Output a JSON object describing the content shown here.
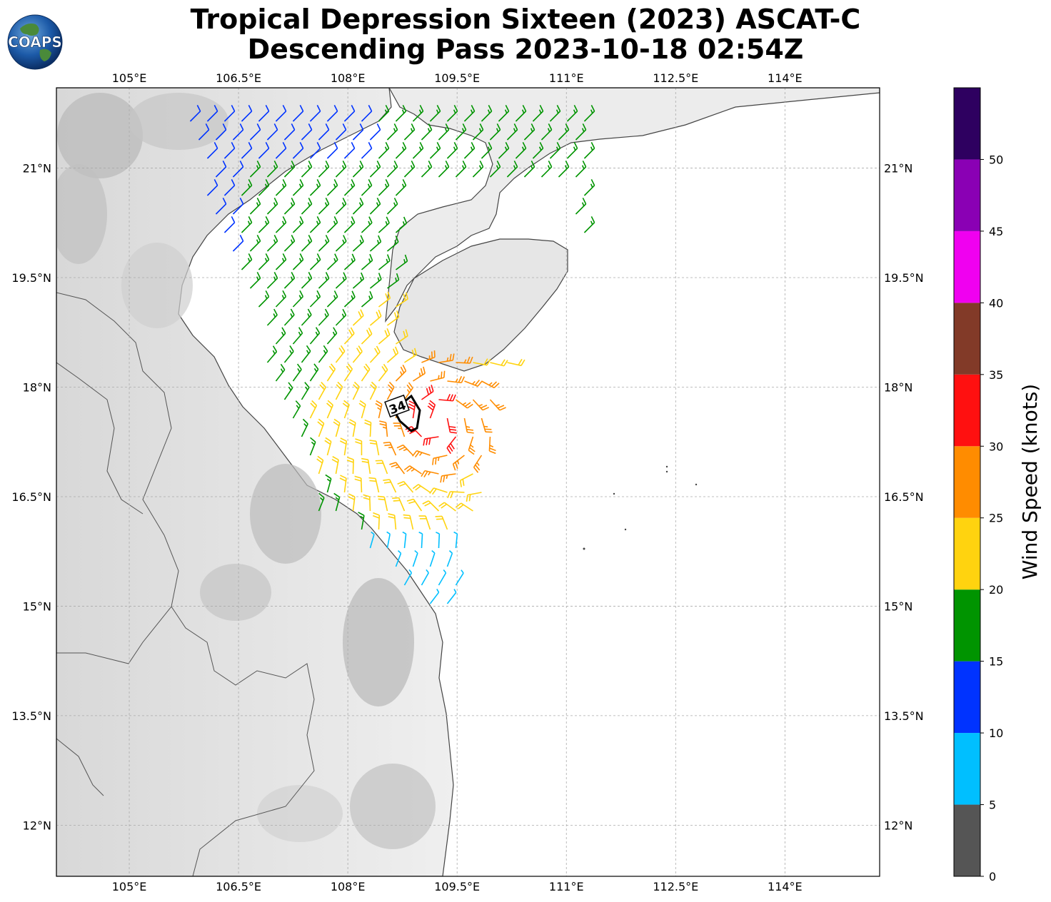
{
  "title_line1": "Tropical Depression Sixteen (2023) ASCAT-C",
  "title_line2": "Descending Pass 2023-10-18 02:54Z",
  "logo_text": "COAPS",
  "map": {
    "lon_range": [
      104.0,
      115.3
    ],
    "lat_range": [
      11.3,
      22.1
    ],
    "lon_ticks": [
      {
        "value": 105.0,
        "label": "105°E"
      },
      {
        "value": 106.5,
        "label": "106.5°E"
      },
      {
        "value": 108.0,
        "label": "108°E"
      },
      {
        "value": 109.5,
        "label": "109.5°E"
      },
      {
        "value": 111.0,
        "label": "111°E"
      },
      {
        "value": 112.5,
        "label": "112.5°E"
      },
      {
        "value": 114.0,
        "label": "114°E"
      }
    ],
    "lat_ticks": [
      {
        "value": 21.0,
        "label": "21°N"
      },
      {
        "value": 19.5,
        "label": "19.5°N"
      },
      {
        "value": 18.0,
        "label": "18°N"
      },
      {
        "value": 16.5,
        "label": "16.5°N"
      },
      {
        "value": 15.0,
        "label": "15°N"
      },
      {
        "value": 13.5,
        "label": "13.5°N"
      },
      {
        "value": 12.0,
        "label": "12°N"
      }
    ],
    "grid": true,
    "contour_label": "34",
    "storm_center": {
      "lon": 109.2,
      "lat": 17.55
    }
  },
  "colorbar": {
    "label": "Wind Speed (knots)",
    "bins": [
      {
        "from": 0,
        "to": 5,
        "color": "#555555"
      },
      {
        "from": 5,
        "to": 10,
        "color": "#00bfff"
      },
      {
        "from": 10,
        "to": 15,
        "color": "#0033ff"
      },
      {
        "from": 15,
        "to": 20,
        "color": "#009400"
      },
      {
        "from": 20,
        "to": 25,
        "color": "#ffd30f"
      },
      {
        "from": 25,
        "to": 30,
        "color": "#ff8c00"
      },
      {
        "from": 30,
        "to": 35,
        "color": "#ff1010"
      },
      {
        "from": 35,
        "to": 40,
        "color": "#823a28"
      },
      {
        "from": 40,
        "to": 45,
        "color": "#f000f0"
      },
      {
        "from": 45,
        "to": 50,
        "color": "#8a00b4"
      },
      {
        "from": 50,
        "to": 55,
        "color": "#2e0060"
      }
    ],
    "ticks": [
      "0",
      "5",
      "10",
      "15",
      "20",
      "25",
      "30",
      "35",
      "40",
      "45",
      "50"
    ]
  }
}
